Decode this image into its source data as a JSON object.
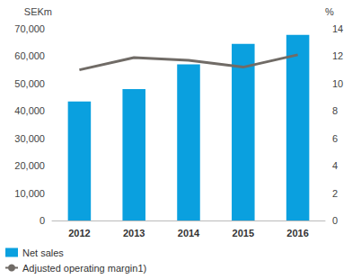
{
  "chart_data": {
    "type": "bar",
    "categories": [
      "2012",
      "2013",
      "2014",
      "2015",
      "2016"
    ],
    "series": [
      {
        "name": "Net sales",
        "type": "bar",
        "color": "#0aa0df",
        "values": [
          43500,
          48000,
          57000,
          64500,
          67800
        ]
      },
      {
        "name": "Adjusted operating margin1)",
        "type": "line",
        "axis": "y2",
        "color": "#706b66",
        "values": [
          11.0,
          11.9,
          11.7,
          11.2,
          12.1
        ]
      }
    ],
    "y_label": "SEKm",
    "y2_label": "%",
    "ylim": [
      0,
      70000
    ],
    "yticks": [
      0,
      {
        "value": 10000,
        "label": "10,000"
      },
      {
        "value": 20000,
        "label": "20,000"
      },
      {
        "value": 30000,
        "label": "30,000"
      },
      {
        "value": 40000,
        "label": "40,000"
      },
      {
        "value": 50000,
        "label": "50,000"
      },
      {
        "value": 60000,
        "label": "60,000"
      },
      {
        "value": 70000,
        "label": "70,000"
      }
    ],
    "y2lim": [
      0,
      14
    ],
    "y2ticks": [
      0,
      2,
      4,
      6,
      8,
      10,
      12,
      14
    ],
    "grid": false,
    "legend": "bottom"
  }
}
